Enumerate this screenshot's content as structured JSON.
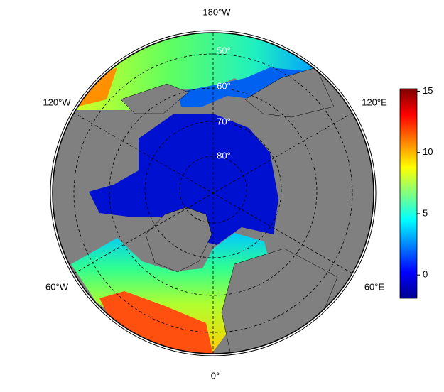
{
  "chart_data": {
    "type": "polar-map",
    "lon_labels": [
      "180°W",
      "120°W",
      "120°E",
      "60°W",
      "60°E",
      "0°"
    ],
    "lat_labels": [
      "50°",
      "60°",
      "70°",
      "80°"
    ],
    "colorbar": {
      "clim": [
        -1.9,
        15.2
      ],
      "ticks": [
        15,
        10,
        5,
        0
      ],
      "colormap": [
        "#00008f",
        "#0000ff",
        "#0080ff",
        "#00ffff",
        "#80ff80",
        "#ffff00",
        "#ff8000",
        "#ff0000",
        "#800000"
      ]
    }
  }
}
